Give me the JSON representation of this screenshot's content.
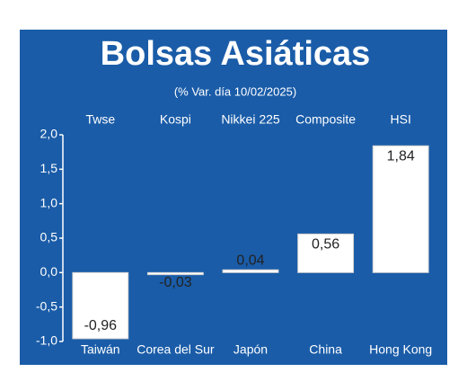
{
  "chart_data": {
    "type": "bar",
    "title": "Bolsas Asiáticas",
    "subtitle": "(% Var. día 10/02/2025)",
    "index_names": [
      "Twse",
      "Kospi",
      "Nikkei 225",
      "Composite",
      "HSI"
    ],
    "categories": [
      "Taiwán",
      "Corea del Sur",
      "Japón",
      "China",
      "Hong Kong"
    ],
    "values": [
      -0.96,
      -0.03,
      0.04,
      0.56,
      1.84
    ],
    "value_labels": [
      "-0,96",
      "-0,03",
      "0,04",
      "0,56",
      "1,84"
    ],
    "color": "#ffffff",
    "background": "#1a5ca8",
    "ylim": [
      -1.0,
      2.0
    ],
    "yticks": [
      {
        "value": 2.0,
        "label": "2,0"
      },
      {
        "value": 1.5,
        "label": "1,5"
      },
      {
        "value": 1.0,
        "label": "1,0"
      },
      {
        "value": 0.5,
        "label": "0,5"
      },
      {
        "value": 0.0,
        "label": "0,0"
      },
      {
        "value": -0.5,
        "label": "-0,5"
      },
      {
        "value": -1.0,
        "label": "-1,0"
      }
    ]
  }
}
